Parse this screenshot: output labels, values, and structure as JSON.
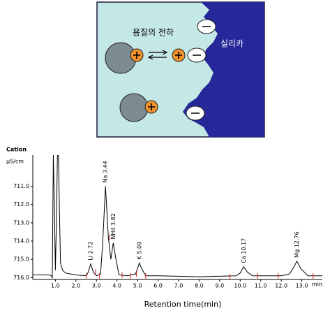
{
  "diagram": {
    "solute_label": "용질의 전하",
    "silica_label": "실리카"
  },
  "chart_data": {
    "type": "line",
    "title": "Cation",
    "ylabel": "μS/cm",
    "xlabel": "Retention time(min)",
    "x_unit": "min",
    "xlim": [
      -0.1,
      14.0
    ],
    "xticks": [
      {
        "value": 1,
        "label": "1.0"
      },
      {
        "value": 2,
        "label": "2.0"
      },
      {
        "value": 3,
        "label": "3.0"
      },
      {
        "value": 4,
        "label": "4.0"
      },
      {
        "value": 5,
        "label": "5.0"
      },
      {
        "value": 6,
        "label": "6.0"
      },
      {
        "value": 7,
        "label": "7.0"
      },
      {
        "value": 8,
        "label": "8.0"
      },
      {
        "value": 9,
        "label": "9.0"
      },
      {
        "value": 10,
        "label": "10.0"
      },
      {
        "value": 11,
        "label": "11.0"
      },
      {
        "value": 12,
        "label": "12.0"
      },
      {
        "value": 13,
        "label": "13.0"
      }
    ],
    "ylim": [
      716.1,
      709.3
    ],
    "yticks": [
      {
        "value": 711,
        "label": "711.0"
      },
      {
        "value": 712,
        "label": "712.0"
      },
      {
        "value": 713,
        "label": "713.0"
      },
      {
        "value": 714,
        "label": "714.0"
      },
      {
        "value": 715,
        "label": "715.0"
      },
      {
        "value": 716,
        "label": "716.0"
      }
    ],
    "x": [
      -0.1,
      0.7,
      0.8,
      0.85,
      0.9,
      0.95,
      1.0,
      1.05,
      1.1,
      1.15,
      1.2,
      1.25,
      1.35,
      1.5,
      2.0,
      2.5,
      2.6,
      2.72,
      2.85,
      3.0,
      3.2,
      3.3,
      3.44,
      3.58,
      3.7,
      3.82,
      3.95,
      4.1,
      4.5,
      4.9,
      5.0,
      5.09,
      5.2,
      5.4,
      6,
      8,
      9.8,
      10.0,
      10.17,
      10.35,
      10.6,
      12,
      12.4,
      12.6,
      12.76,
      12.95,
      13.3,
      14.0
    ],
    "series": [
      {
        "color": "#000000",
        "values": [
          715.85,
          715.85,
          715.9,
          716.0,
          709.3,
          712.0,
          715.6,
          713.0,
          709.3,
          709.3,
          712.5,
          715.2,
          715.6,
          715.75,
          715.85,
          715.9,
          715.7,
          715.25,
          715.7,
          715.9,
          715.8,
          714.2,
          711.0,
          713.8,
          715.0,
          714.1,
          715.0,
          715.85,
          715.9,
          715.8,
          715.5,
          715.2,
          715.5,
          715.9,
          715.9,
          715.95,
          715.9,
          715.75,
          715.4,
          715.7,
          715.9,
          715.9,
          715.8,
          715.45,
          715.1,
          715.5,
          715.9,
          715.9
        ]
      }
    ],
    "annotations": [
      {
        "text": "Li 2.72",
        "x": 2.72
      },
      {
        "text": "Na 3.44",
        "x": 3.44
      },
      {
        "text": "NH4 3.82",
        "x": 3.82
      },
      {
        "text": "K 5.09",
        "x": 5.09
      },
      {
        "text": "Ca 10.17",
        "x": 10.17
      },
      {
        "text": "Mg 12.76",
        "x": 12.76
      }
    ],
    "markers": [
      2.5,
      2.95,
      3.15,
      3.65,
      4.25,
      4.65,
      4.95,
      5.4,
      9.5,
      10.85,
      11.85,
      13.55
    ],
    "marker_color": "#d62020"
  }
}
